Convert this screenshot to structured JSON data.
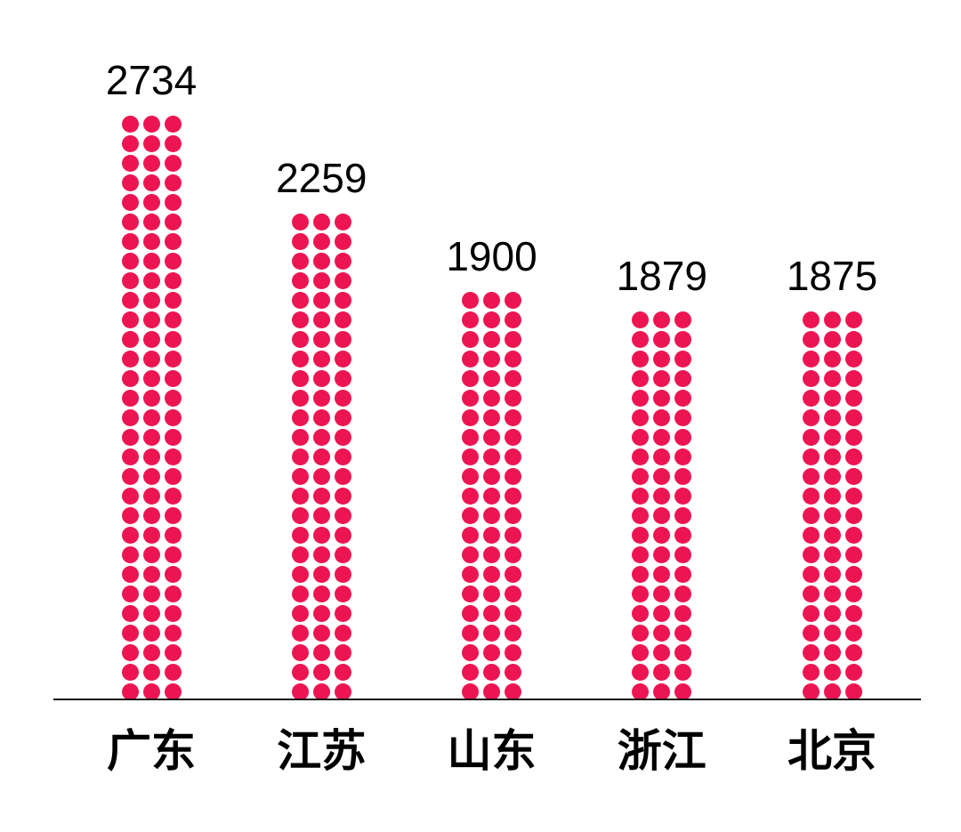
{
  "page": {
    "background_color": "#ffffff"
  },
  "chart_data": {
    "type": "bar",
    "style": "dot-pictogram",
    "title": "",
    "xlabel": "",
    "ylabel": "",
    "categories": [
      "广东",
      "江苏",
      "山东",
      "浙江",
      "北京"
    ],
    "values": [
      2734,
      2259,
      1900,
      1879,
      1875
    ],
    "value_labels": [
      "2734",
      "2259",
      "1900",
      "1879",
      "1875"
    ],
    "legend": "none",
    "grid": "off",
    "ylim": [
      0,
      2800
    ],
    "dot_color": "#ED1551",
    "axis_color": "#111111",
    "text_color": "#000000"
  }
}
